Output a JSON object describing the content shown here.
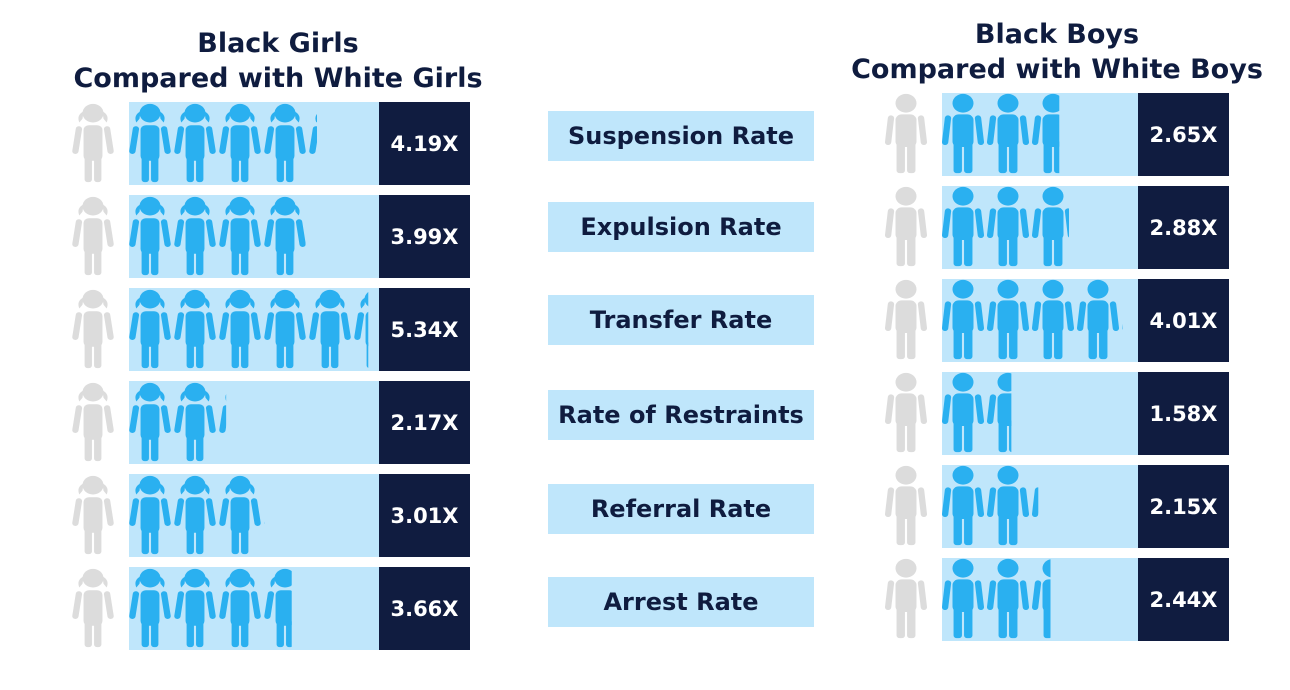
{
  "chart_data": [
    {
      "type": "bar",
      "title": [
        "Black Girls",
        "Compared with White Girls"
      ],
      "categories": [
        "Suspension Rate",
        "Expulsion Rate",
        "Transfer Rate",
        "Rate of Restraints",
        "Referral Rate",
        "Arrest Rate"
      ],
      "values": [
        4.19,
        3.99,
        5.34,
        2.17,
        3.01,
        3.66
      ],
      "value_labels": [
        "4.19X",
        "3.99X",
        "5.34X",
        "2.17X",
        "3.01X",
        "3.66X"
      ],
      "icon": "girl-figure-icon"
    },
    {
      "type": "bar",
      "title": [
        "Black Boys",
        "Compared with White Boys"
      ],
      "categories": [
        "Suspension Rate",
        "Expulsion Rate",
        "Transfer Rate",
        "Rate of Restraints",
        "Referral Rate",
        "Arrest Rate"
      ],
      "values": [
        2.65,
        2.88,
        4.01,
        1.58,
        2.15,
        2.44
      ],
      "value_labels": [
        "2.65X",
        "2.88X",
        "4.01X",
        "1.58X",
        "2.15X",
        "2.44X"
      ],
      "icon": "boy-figure-icon"
    }
  ],
  "colors": {
    "white_figure": "#dcdcdc",
    "black_figure": "#2ab0f0",
    "bar_background": "#bfe6fb",
    "value_box": "#101c40",
    "title": "#0f1c3f"
  }
}
